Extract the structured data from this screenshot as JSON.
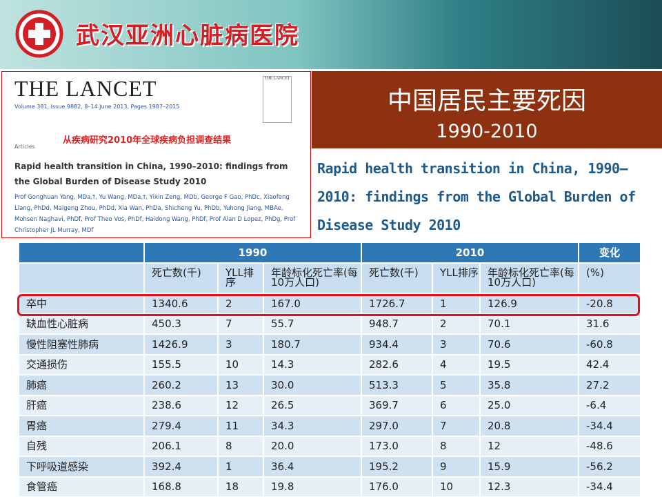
{
  "header": {
    "hospital_name": "武汉亚洲心脏病医院"
  },
  "article": {
    "journal": "THE LANCET",
    "citation": "Volume 381, Issue 9882, 8–14 June 2013, Pages 1987–2015",
    "note": "从疾病研究2010年全球疾病负担调查结果",
    "section": "Articles",
    "title": "Rapid health transition in China, 1990–2010: findings from the Global Burden of Disease Study 2010",
    "authors": "Prof Gonghuan Yang, MDa,†, Yu Wang, MDa,†, Yixin Zeng, MDb, George F Gao, PhDc, Xiaofeng Liang, PhDd, Maigeng Zhou, PhDd, Xia Wan, PhDa, Shicheng Yu, PhDb, Yuhong Jiang, MBAe, Mohsen Naghavi, PhDf, Prof Theo Vos, PhDf, Haidong Wang, PhDf, Prof Alan D Lopez, PhDg, Prof Christopher JL Murray, MDf"
  },
  "slide": {
    "title": "中国居民主要死因",
    "subtitle": "1990-2010",
    "english_title": "Rapid health transition in China, 1990–2010: findings from the Global Burden of Disease Study 2010"
  },
  "table": {
    "groups": [
      "1990",
      "2010",
      "变化"
    ],
    "columns": [
      "死亡数(千)",
      "YLL排序",
      "年龄标化死亡率(每10万人口)",
      "死亡数(千)",
      "YLL排序",
      "年龄标化死亡率(每10万人口)",
      "(%)"
    ],
    "rows": [
      [
        "卒中",
        "1340.6",
        "2",
        "167.0",
        "1726.7",
        "1",
        "126.9",
        "-20.8"
      ],
      [
        "缺血性心脏病",
        "450.3",
        "7",
        "55.7",
        "948.7",
        "2",
        "70.1",
        "31.6"
      ],
      [
        "慢性阻塞性肺病",
        "1426.9",
        "3",
        "180.7",
        "934.4",
        "3",
        "70.6",
        "-60.8"
      ],
      [
        "交通损伤",
        "155.5",
        "10",
        "14.3",
        "282.6",
        "4",
        "19.5",
        "42.4"
      ],
      [
        "肺癌",
        "260.2",
        "13",
        "30.0",
        "513.3",
        "5",
        "35.8",
        "27.2"
      ],
      [
        "肝癌",
        "238.6",
        "12",
        "26.5",
        "369.7",
        "6",
        "25.0",
        "-6.4"
      ],
      [
        "胃癌",
        "279.4",
        "11",
        "34.3",
        "297.0",
        "7",
        "20.8",
        "-34.4"
      ],
      [
        "自残",
        "206.1",
        "8",
        "20.0",
        "173.0",
        "8",
        "12",
        "-48.6"
      ],
      [
        "下呼吸道感染",
        "392.4",
        "1",
        "36.4",
        "195.2",
        "9",
        "15.9",
        "-56.2"
      ],
      [
        "食管癌",
        "168.8",
        "18",
        "19.8",
        "176.0",
        "10",
        "12.3",
        "-34.4"
      ]
    ]
  }
}
